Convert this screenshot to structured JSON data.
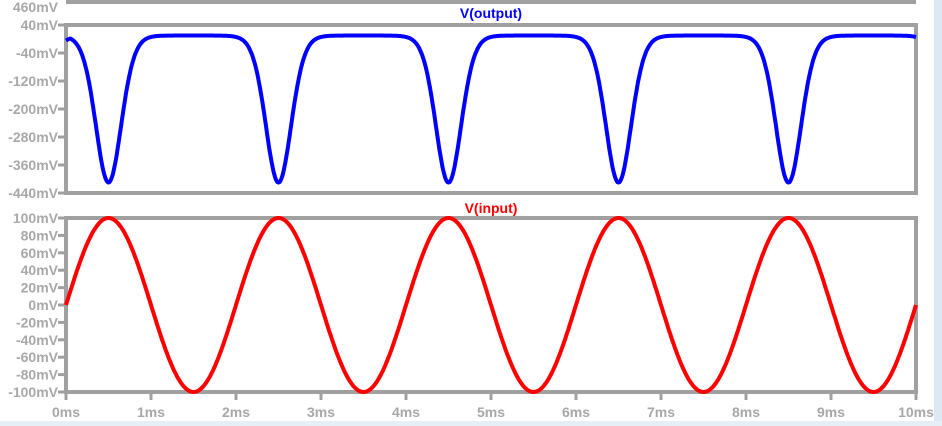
{
  "chart_data": [
    {
      "type": "line",
      "title": "V(output)",
      "color": "#0000ff",
      "yticks": [
        "40mV",
        "-40mV",
        "-120mV",
        "-200mV",
        "-280mV",
        "-360mV",
        "-440mV"
      ],
      "ylim": [
        -440,
        40
      ],
      "xlim": [
        0,
        10
      ],
      "series": [
        {
          "name": "V(output)",
          "baseline_mV": 10,
          "minimum_mV": -410,
          "period_ms": 2,
          "dip_centers_ms": [
            0.5,
            2.5,
            4.5,
            6.5,
            8.5
          ]
        }
      ],
      "clipped_label_above": "460mV"
    },
    {
      "type": "line",
      "title": "V(input)",
      "color": "#ff0000",
      "yticks": [
        "100mV",
        "80mV",
        "60mV",
        "40mV",
        "20mV",
        "0mV",
        "-20mV",
        "-40mV",
        "-60mV",
        "-80mV",
        "-100mV"
      ],
      "ylim": [
        -100,
        100
      ],
      "xlim": [
        0,
        10
      ],
      "xticks": [
        "0ms",
        "1ms",
        "2ms",
        "3ms",
        "4ms",
        "5ms",
        "6ms",
        "7ms",
        "8ms",
        "9ms",
        "10ms"
      ],
      "series": [
        {
          "name": "V(input)",
          "amplitude_mV": 100,
          "frequency_hz": 500,
          "offset_mV": 0
        }
      ]
    }
  ],
  "colors": {
    "frame": "#a0a0a0",
    "ticks": "#a8a8a8"
  }
}
